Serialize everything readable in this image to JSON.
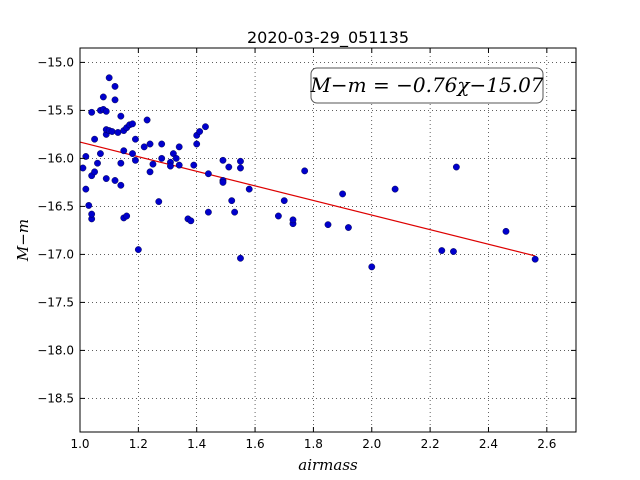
{
  "chart_data": {
    "type": "scatter",
    "title": "2020-03-29_051135",
    "xlabel": "airmass",
    "ylabel": "M−m",
    "xlim": [
      1.0,
      2.7
    ],
    "ylim": [
      -14.85,
      -18.85
    ],
    "y_inverted": true,
    "grid": true,
    "x_ticks": [
      1.0,
      1.2,
      1.4,
      1.6,
      1.8,
      2.0,
      2.2,
      2.4,
      2.6
    ],
    "x_tick_labels": [
      "1.0",
      "1.2",
      "1.4",
      "1.6",
      "1.8",
      "2.0",
      "2.2",
      "2.4",
      "2.6"
    ],
    "y_ticks": [
      -15.0,
      -15.5,
      -16.0,
      -16.5,
      -17.0,
      -17.5,
      -18.0,
      -18.5
    ],
    "y_tick_labels": [
      "−15.0",
      "−15.5",
      "−16.0",
      "−16.5",
      "−17.0",
      "−17.5",
      "−18.0",
      "−18.5"
    ],
    "point_color": "#0000cc",
    "fit_color": "#dd0000",
    "annotation": "M−m = −0.76χ−15.07",
    "fit": {
      "slope": -0.76,
      "intercept": -15.07,
      "x_range": [
        1.0,
        2.56
      ]
    },
    "series": [
      {
        "points": [
          [
            1.01,
            -16.1
          ],
          [
            1.02,
            -15.98
          ],
          [
            1.02,
            -16.32
          ],
          [
            1.03,
            -16.49
          ],
          [
            1.04,
            -15.52
          ],
          [
            1.04,
            -16.18
          ],
          [
            1.04,
            -16.63
          ],
          [
            1.04,
            -16.58
          ],
          [
            1.05,
            -16.14
          ],
          [
            1.05,
            -15.8
          ],
          [
            1.06,
            -16.05
          ],
          [
            1.07,
            -15.5
          ],
          [
            1.07,
            -15.95
          ],
          [
            1.08,
            -15.36
          ],
          [
            1.08,
            -15.49
          ],
          [
            1.09,
            -15.75
          ],
          [
            1.09,
            -15.51
          ],
          [
            1.09,
            -15.7
          ],
          [
            1.09,
            -16.21
          ],
          [
            1.1,
            -15.16
          ],
          [
            1.1,
            -15.71
          ],
          [
            1.11,
            -15.72
          ],
          [
            1.12,
            -15.25
          ],
          [
            1.12,
            -15.39
          ],
          [
            1.12,
            -16.23
          ],
          [
            1.13,
            -15.73
          ],
          [
            1.14,
            -15.56
          ],
          [
            1.14,
            -16.28
          ],
          [
            1.14,
            -16.05
          ],
          [
            1.15,
            -15.71
          ],
          [
            1.15,
            -15.92
          ],
          [
            1.15,
            -16.62
          ],
          [
            1.16,
            -16.6
          ],
          [
            1.16,
            -15.68
          ],
          [
            1.17,
            -15.65
          ],
          [
            1.18,
            -15.64
          ],
          [
            1.18,
            -15.95
          ],
          [
            1.19,
            -15.8
          ],
          [
            1.19,
            -16.02
          ],
          [
            1.2,
            -16.95
          ],
          [
            1.22,
            -15.88
          ],
          [
            1.23,
            -15.6
          ],
          [
            1.24,
            -16.14
          ],
          [
            1.24,
            -15.85
          ],
          [
            1.25,
            -16.06
          ],
          [
            1.27,
            -16.45
          ],
          [
            1.28,
            -16.0
          ],
          [
            1.28,
            -15.85
          ],
          [
            1.31,
            -16.04
          ],
          [
            1.31,
            -16.08
          ],
          [
            1.32,
            -15.95
          ],
          [
            1.33,
            -16.0
          ],
          [
            1.34,
            -15.88
          ],
          [
            1.34,
            -16.07
          ],
          [
            1.37,
            -16.63
          ],
          [
            1.38,
            -16.65
          ],
          [
            1.39,
            -16.07
          ],
          [
            1.4,
            -15.85
          ],
          [
            1.4,
            -15.76
          ],
          [
            1.41,
            -15.72
          ],
          [
            1.43,
            -15.67
          ],
          [
            1.44,
            -16.16
          ],
          [
            1.44,
            -16.56
          ],
          [
            1.49,
            -16.02
          ],
          [
            1.49,
            -16.23
          ],
          [
            1.49,
            -16.25
          ],
          [
            1.51,
            -16.09
          ],
          [
            1.52,
            -16.44
          ],
          [
            1.53,
            -16.56
          ],
          [
            1.55,
            -16.1
          ],
          [
            1.55,
            -16.03
          ],
          [
            1.55,
            -17.04
          ],
          [
            1.58,
            -16.32
          ],
          [
            1.68,
            -16.6
          ],
          [
            1.7,
            -16.44
          ],
          [
            1.73,
            -16.68
          ],
          [
            1.73,
            -16.64
          ],
          [
            1.77,
            -16.13
          ],
          [
            1.85,
            -16.69
          ],
          [
            1.9,
            -16.37
          ],
          [
            1.92,
            -16.72
          ],
          [
            2.0,
            -17.13
          ],
          [
            2.08,
            -16.32
          ],
          [
            2.24,
            -16.96
          ],
          [
            2.28,
            -16.97
          ],
          [
            2.29,
            -16.09
          ],
          [
            2.46,
            -16.76
          ],
          [
            2.56,
            -17.05
          ]
        ]
      }
    ]
  }
}
